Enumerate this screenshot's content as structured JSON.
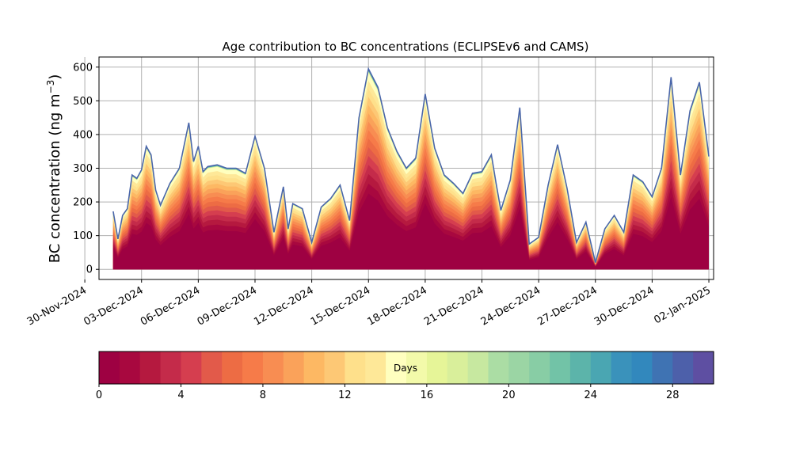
{
  "chart_data": {
    "type": "area",
    "title": "Age contribution to BC concentrations (ECLIPSEv6 and CAMS)",
    "ylabel": "BC concentration (ng m",
    "ylabel_sup": "−3",
    "ylabel_close": ")",
    "xlabel": "",
    "ylim": [
      -30,
      630
    ],
    "xlim": [
      "2024-11-30T18:00",
      "2025-01-02T06:00"
    ],
    "grid": true,
    "y_ticks": [
      0,
      100,
      200,
      300,
      400,
      500,
      600
    ],
    "x_ticks": [
      {
        "date": "2024-11-30",
        "label": "30-Nov-2024"
      },
      {
        "date": "2024-12-03",
        "label": "03-Dec-2024"
      },
      {
        "date": "2024-12-06",
        "label": "06-Dec-2024"
      },
      {
        "date": "2024-12-09",
        "label": "09-Dec-2024"
      },
      {
        "date": "2024-12-12",
        "label": "12-Dec-2024"
      },
      {
        "date": "2024-12-15",
        "label": "15-Dec-2024"
      },
      {
        "date": "2024-12-18",
        "label": "18-Dec-2024"
      },
      {
        "date": "2024-12-21",
        "label": "21-Dec-2024"
      },
      {
        "date": "2024-12-24",
        "label": "24-Dec-2024"
      },
      {
        "date": "2024-12-27",
        "label": "27-Dec-2024"
      },
      {
        "date": "2024-12-30",
        "label": "30-Dec-2024"
      },
      {
        "date": "2025-01-02",
        "label": "02-Jan-2025"
      }
    ],
    "total_series": {
      "x": [
        "2024-12-01T12:00",
        "2024-12-01T18:00",
        "2024-12-02T00:00",
        "2024-12-02T06:00",
        "2024-12-02T12:00",
        "2024-12-02T18:00",
        "2024-12-03T00:00",
        "2024-12-03T06:00",
        "2024-12-03T12:00",
        "2024-12-03T18:00",
        "2024-12-04T00:00",
        "2024-12-04T12:00",
        "2024-12-05T00:00",
        "2024-12-05T12:00",
        "2024-12-05T18:00",
        "2024-12-06T00:00",
        "2024-12-06T06:00",
        "2024-12-06T12:00",
        "2024-12-07T00:00",
        "2024-12-07T12:00",
        "2024-12-08T00:00",
        "2024-12-08T12:00",
        "2024-12-09T00:00",
        "2024-12-09T12:00",
        "2024-12-10T00:00",
        "2024-12-10T12:00",
        "2024-12-10T18:00",
        "2024-12-11T00:00",
        "2024-12-11T12:00",
        "2024-12-12T00:00",
        "2024-12-12T12:00",
        "2024-12-13T00:00",
        "2024-12-13T12:00",
        "2024-12-14T00:00",
        "2024-12-14T12:00",
        "2024-12-15T00:00",
        "2024-12-15T12:00",
        "2024-12-16T00:00",
        "2024-12-16T12:00",
        "2024-12-17T00:00",
        "2024-12-17T12:00",
        "2024-12-18T00:00",
        "2024-12-18T12:00",
        "2024-12-19T00:00",
        "2024-12-19T12:00",
        "2024-12-20T00:00",
        "2024-12-20T12:00",
        "2024-12-21T00:00",
        "2024-12-21T12:00",
        "2024-12-21T18:00",
        "2024-12-22T00:00",
        "2024-12-22T12:00",
        "2024-12-23T00:00",
        "2024-12-23T12:00",
        "2024-12-24T00:00",
        "2024-12-24T12:00",
        "2024-12-25T00:00",
        "2024-12-25T12:00",
        "2024-12-26T00:00",
        "2024-12-26T12:00",
        "2024-12-27T00:00",
        "2024-12-27T12:00",
        "2024-12-28T00:00",
        "2024-12-28T12:00",
        "2024-12-29T00:00",
        "2024-12-29T12:00",
        "2024-12-30T00:00",
        "2024-12-30T12:00",
        "2024-12-31T00:00",
        "2024-12-31T12:00",
        "2025-01-01T00:00",
        "2025-01-01T12:00",
        "2025-01-02T00:00"
      ],
      "values": [
        172,
        90,
        160,
        180,
        280,
        270,
        295,
        365,
        340,
        235,
        190,
        255,
        300,
        435,
        320,
        365,
        290,
        305,
        310,
        300,
        300,
        285,
        395,
        300,
        110,
        245,
        120,
        195,
        180,
        80,
        185,
        210,
        250,
        145,
        450,
        595,
        540,
        420,
        350,
        300,
        330,
        520,
        360,
        280,
        255,
        225,
        285,
        290,
        340,
        255,
        175,
        265,
        480,
        75,
        95,
        250,
        370,
        240,
        80,
        140,
        20,
        120,
        160,
        110,
        280,
        260,
        215,
        300,
        570,
        280,
        470,
        555,
        335
      ]
    },
    "colorbar": {
      "label": "Days",
      "min": 0,
      "max": 30,
      "bands": 30,
      "ticks": [
        0,
        4,
        8,
        12,
        16,
        20,
        24,
        28
      ],
      "colors": [
        "#9e0142",
        "#a8083f",
        "#b5193f",
        "#c42b4a",
        "#d53e4f",
        "#e25a4a",
        "#ed6c44",
        "#f67b49",
        "#f88d52",
        "#faa25a",
        "#fdb863",
        "#fdc875",
        "#fee08b",
        "#fee898",
        "#ffffbf",
        "#f3faaa",
        "#e6f598",
        "#d9ef9b",
        "#c7e8a0",
        "#abdda4",
        "#9bd5a4",
        "#88cda5",
        "#72c3a7",
        "#5cb4aa",
        "#4aa6b2",
        "#3a92bb",
        "#3288bd",
        "#3f73b3",
        "#4d60aa",
        "#5e4fa2"
      ]
    }
  }
}
